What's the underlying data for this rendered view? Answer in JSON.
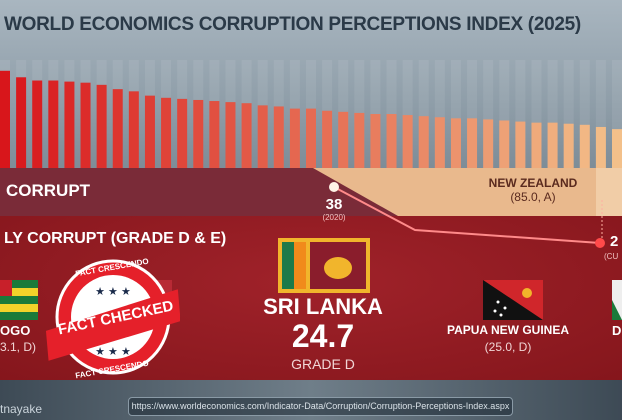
{
  "title": "WORLD ECONOMICS CORRUPTION PERCEPTIONS INDEX (2025)",
  "bars": [
    90,
    84,
    81,
    81,
    80,
    79,
    77,
    73,
    71,
    67,
    65,
    64,
    63,
    62,
    61,
    60,
    58,
    57,
    55,
    55,
    53,
    52,
    51,
    50,
    50,
    49,
    48,
    47,
    46,
    46,
    45,
    44,
    43,
    42,
    42,
    41,
    40,
    38,
    36
  ],
  "band_label": "CORRUPT",
  "highly_corrupt_label": "LY CORRUPT (GRADE D & E)",
  "trend": {
    "start_value": "38",
    "start_year": "(2020)",
    "end_value": "2",
    "end_year": "(CU"
  },
  "new_zealand": {
    "name": "NEW ZEALAND",
    "detail": "(85.0, A)"
  },
  "featured": {
    "name": "SRI LANKA",
    "score": "24.7",
    "grade": "GRADE D"
  },
  "countries": [
    {
      "name": "OGO",
      "detail": "3.1, D)"
    },
    {
      "name": "PAPUA NEW GUINEA",
      "detail": "(25.0, D)"
    },
    {
      "name": "D",
      "detail": ""
    }
  ],
  "stamp": {
    "top": "FACT CRESCENDO",
    "main": "FACT CHECKED",
    "bottom": "FACT CRESCENDO"
  },
  "credit": "tnayake",
  "source_url": "https://www.worldeconomics.com/Indicator-Data/Corruption/Corruption-Perceptions-Index.aspx",
  "colors": {
    "bar_start": "#d8161b",
    "bar_end": "#f3c08a",
    "band": "#7a2b38",
    "red": "#8d1a1f",
    "peach": "#e9b98d"
  }
}
